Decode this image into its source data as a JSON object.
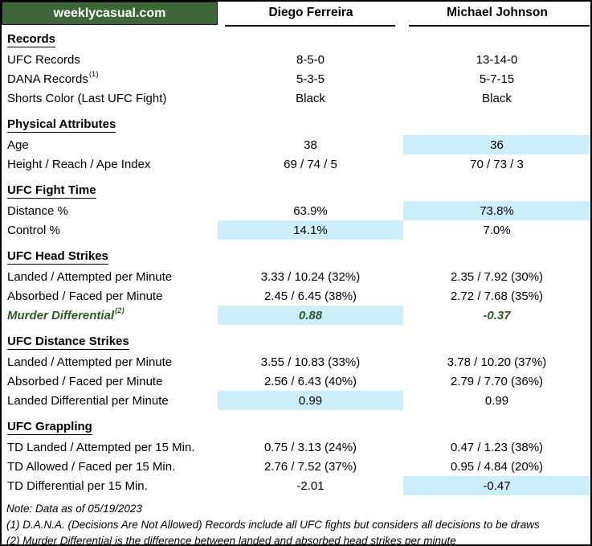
{
  "header": {
    "site": "weeklycasual.com",
    "fighter1": "Diego Ferreira",
    "fighter2": "Michael Johnson"
  },
  "colors": {
    "header_green": "#3d6639",
    "highlight_blue": "#cdeefb",
    "murder_green": "#2f5b27"
  },
  "chart_data": {
    "type": "table",
    "columns": [
      "weeklycasual.com",
      "Diego Ferreira",
      "Michael Johnson"
    ],
    "highlight_meaning": "light-blue cell = better value for that stat",
    "sections": [
      {
        "title": "Records",
        "rows": [
          {
            "label": "UFC Records",
            "v1": "8-5-0",
            "v2": "13-14-0",
            "h1": false,
            "h2": false
          },
          {
            "label": "DANA Records",
            "sup": "(1)",
            "v1": "5-3-5",
            "v2": "5-7-15",
            "h1": false,
            "h2": false
          },
          {
            "label": "Shorts Color (Last UFC Fight)",
            "v1": "Black",
            "v2": "Black",
            "h1": false,
            "h2": false
          }
        ]
      },
      {
        "title": "Physical Attributes",
        "rows": [
          {
            "label": "Age",
            "v1": "38",
            "v2": "36",
            "h1": false,
            "h2": true
          },
          {
            "label": "Height / Reach / Ape Index",
            "v1": "69 / 74 / 5",
            "v2": "70 / 73 / 3",
            "h1": false,
            "h2": false
          }
        ]
      },
      {
        "title": "UFC Fight Time",
        "rows": [
          {
            "label": "Distance %",
            "v1": "63.9%",
            "v2": "73.8%",
            "h1": false,
            "h2": true
          },
          {
            "label": "Control %",
            "v1": "14.1%",
            "v2": "7.0%",
            "h1": true,
            "h2": false
          }
        ]
      },
      {
        "title": "UFC Head Strikes",
        "rows": [
          {
            "label": "Landed / Attempted per Minute",
            "v1": "3.33 / 10.24 (32%)",
            "v2": "2.35 / 7.92 (30%)",
            "h1": false,
            "h2": false
          },
          {
            "label": "Absorbed / Faced per Minute",
            "v1": "2.45 / 6.45 (38%)",
            "v2": "2.72 / 7.68 (35%)",
            "h1": false,
            "h2": false
          },
          {
            "label": "Murder Differential",
            "sup": "(2)",
            "v1": "0.88",
            "v2": "-0.37",
            "h1": true,
            "h2": false,
            "style": "murder"
          }
        ]
      },
      {
        "title": "UFC Distance Strikes",
        "rows": [
          {
            "label": "Landed / Attempted per Minute",
            "v1": "3.55 / 10.83 (33%)",
            "v2": "3.78 / 10.20 (37%)",
            "h1": false,
            "h2": false
          },
          {
            "label": "Absorbed / Faced per Minute",
            "v1": "2.56 / 6.43 (40%)",
            "v2": "2.79 / 7.70 (36%)",
            "h1": false,
            "h2": false
          },
          {
            "label": "Landed Differential per Minute",
            "v1": "0.99",
            "v2": "0.99",
            "h1": true,
            "h2": false
          }
        ]
      },
      {
        "title": "UFC Grappling",
        "rows": [
          {
            "label": "TD Landed / Attempted per 15 Min.",
            "v1": "0.75 / 3.13 (24%)",
            "v2": "0.47 / 1.23 (38%)",
            "h1": false,
            "h2": false
          },
          {
            "label": "TD Allowed / Faced per 15 Min.",
            "v1": "2.76 / 7.52 (37%)",
            "v2": "0.95 / 4.84 (20%)",
            "h1": false,
            "h2": false
          },
          {
            "label": "TD Differential per 15 Min.",
            "v1": "-2.01",
            "v2": "-0.47",
            "h1": false,
            "h2": true
          }
        ]
      }
    ]
  },
  "footnotes": [
    "Note: Data as of 05/19/2023",
    "(1) D.A.N.A. (Decisions Are Not Allowed) Records include all UFC fights but considers all decisions to be draws",
    "(2) Murder Differential is the difference between landed and absorbed head strikes per minute"
  ]
}
